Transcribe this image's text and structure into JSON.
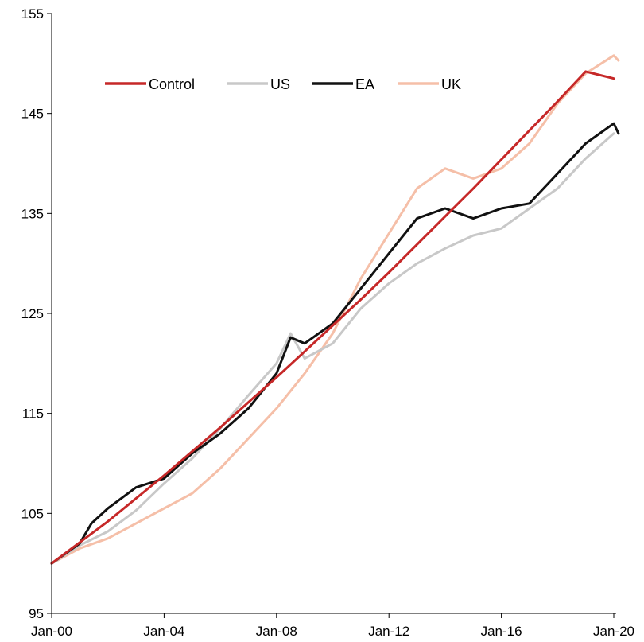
{
  "chart_data": {
    "type": "line",
    "title": "",
    "xlabel": "",
    "ylabel": "",
    "x_ticks": [
      "Jan-00",
      "Jan-04",
      "Jan-08",
      "Jan-12",
      "Jan-16",
      "Jan-20"
    ],
    "xlim": [
      "2000-01",
      "2020-03"
    ],
    "y_ticks": [
      95,
      105,
      115,
      125,
      135,
      145,
      155
    ],
    "ylim": [
      95,
      155
    ],
    "grid": false,
    "legend_position": "top-left",
    "series": [
      {
        "name": "Control",
        "color": "#c62828",
        "points": [
          [
            "2000-01",
            100.0
          ],
          [
            "2001-01",
            102.1
          ],
          [
            "2002-01",
            104.2
          ],
          [
            "2003-01",
            106.5
          ],
          [
            "2004-01",
            108.8
          ],
          [
            "2005-01",
            111.2
          ],
          [
            "2006-01",
            113.6
          ],
          [
            "2007-01",
            116.1
          ],
          [
            "2008-01",
            118.6
          ],
          [
            "2009-01",
            121.2
          ],
          [
            "2010-01",
            123.8
          ],
          [
            "2011-01",
            126.4
          ],
          [
            "2012-01",
            129.1
          ],
          [
            "2013-01",
            131.9
          ],
          [
            "2014-01",
            134.7
          ],
          [
            "2015-01",
            137.5
          ],
          [
            "2016-01",
            140.4
          ],
          [
            "2017-01",
            143.3
          ],
          [
            "2018-01",
            146.2
          ],
          [
            "2019-01",
            149.2
          ],
          [
            "2020-01",
            148.5
          ]
        ]
      },
      {
        "name": "US",
        "color": "#c8c8c8",
        "points": [
          [
            "2000-01",
            100.0
          ],
          [
            "2001-01",
            101.8
          ],
          [
            "2002-01",
            103.2
          ],
          [
            "2003-01",
            105.3
          ],
          [
            "2004-01",
            108.0
          ],
          [
            "2005-01",
            110.5
          ],
          [
            "2006-01",
            113.5
          ],
          [
            "2007-01",
            116.8
          ],
          [
            "2008-01",
            120.0
          ],
          [
            "2008-07",
            123.0
          ],
          [
            "2009-01",
            120.5
          ],
          [
            "2010-01",
            122.0
          ],
          [
            "2011-01",
            125.5
          ],
          [
            "2012-01",
            128.0
          ],
          [
            "2013-01",
            130.0
          ],
          [
            "2014-01",
            131.5
          ],
          [
            "2015-01",
            132.8
          ],
          [
            "2016-01",
            133.5
          ],
          [
            "2017-01",
            135.5
          ],
          [
            "2018-01",
            137.5
          ],
          [
            "2019-01",
            140.5
          ],
          [
            "2020-01",
            143.0
          ]
        ]
      },
      {
        "name": "EA",
        "color": "#111111",
        "points": [
          [
            "2000-01",
            100.0
          ],
          [
            "2001-01",
            102.0
          ],
          [
            "2001-06",
            104.0
          ],
          [
            "2002-01",
            105.5
          ],
          [
            "2003-01",
            107.6
          ],
          [
            "2004-01",
            108.5
          ],
          [
            "2005-01",
            111.0
          ],
          [
            "2006-01",
            113.0
          ],
          [
            "2007-01",
            115.5
          ],
          [
            "2008-01",
            119.0
          ],
          [
            "2008-07",
            122.6
          ],
          [
            "2009-01",
            122.0
          ],
          [
            "2010-01",
            124.0
          ],
          [
            "2011-01",
            127.5
          ],
          [
            "2012-01",
            131.0
          ],
          [
            "2013-01",
            134.5
          ],
          [
            "2014-01",
            135.5
          ],
          [
            "2015-01",
            134.5
          ],
          [
            "2016-01",
            135.5
          ],
          [
            "2017-01",
            136.0
          ],
          [
            "2018-01",
            139.0
          ],
          [
            "2019-01",
            142.0
          ],
          [
            "2020-01",
            144.0
          ],
          [
            "2020-03",
            143.0
          ]
        ]
      },
      {
        "name": "UK",
        "color": "#f5bfa8",
        "points": [
          [
            "2000-01",
            100.0
          ],
          [
            "2001-01",
            101.5
          ],
          [
            "2002-01",
            102.5
          ],
          [
            "2003-01",
            104.0
          ],
          [
            "2004-01",
            105.5
          ],
          [
            "2005-01",
            107.0
          ],
          [
            "2006-01",
            109.5
          ],
          [
            "2007-01",
            112.5
          ],
          [
            "2008-01",
            115.5
          ],
          [
            "2009-01",
            119.0
          ],
          [
            "2010-01",
            123.0
          ],
          [
            "2011-01",
            128.5
          ],
          [
            "2012-01",
            133.0
          ],
          [
            "2013-01",
            137.5
          ],
          [
            "2014-01",
            139.5
          ],
          [
            "2015-01",
            138.5
          ],
          [
            "2016-01",
            139.5
          ],
          [
            "2017-01",
            142.0
          ],
          [
            "2018-01",
            146.0
          ],
          [
            "2019-01",
            149.0
          ],
          [
            "2020-01",
            150.8
          ],
          [
            "2020-03",
            150.3
          ]
        ]
      }
    ]
  }
}
